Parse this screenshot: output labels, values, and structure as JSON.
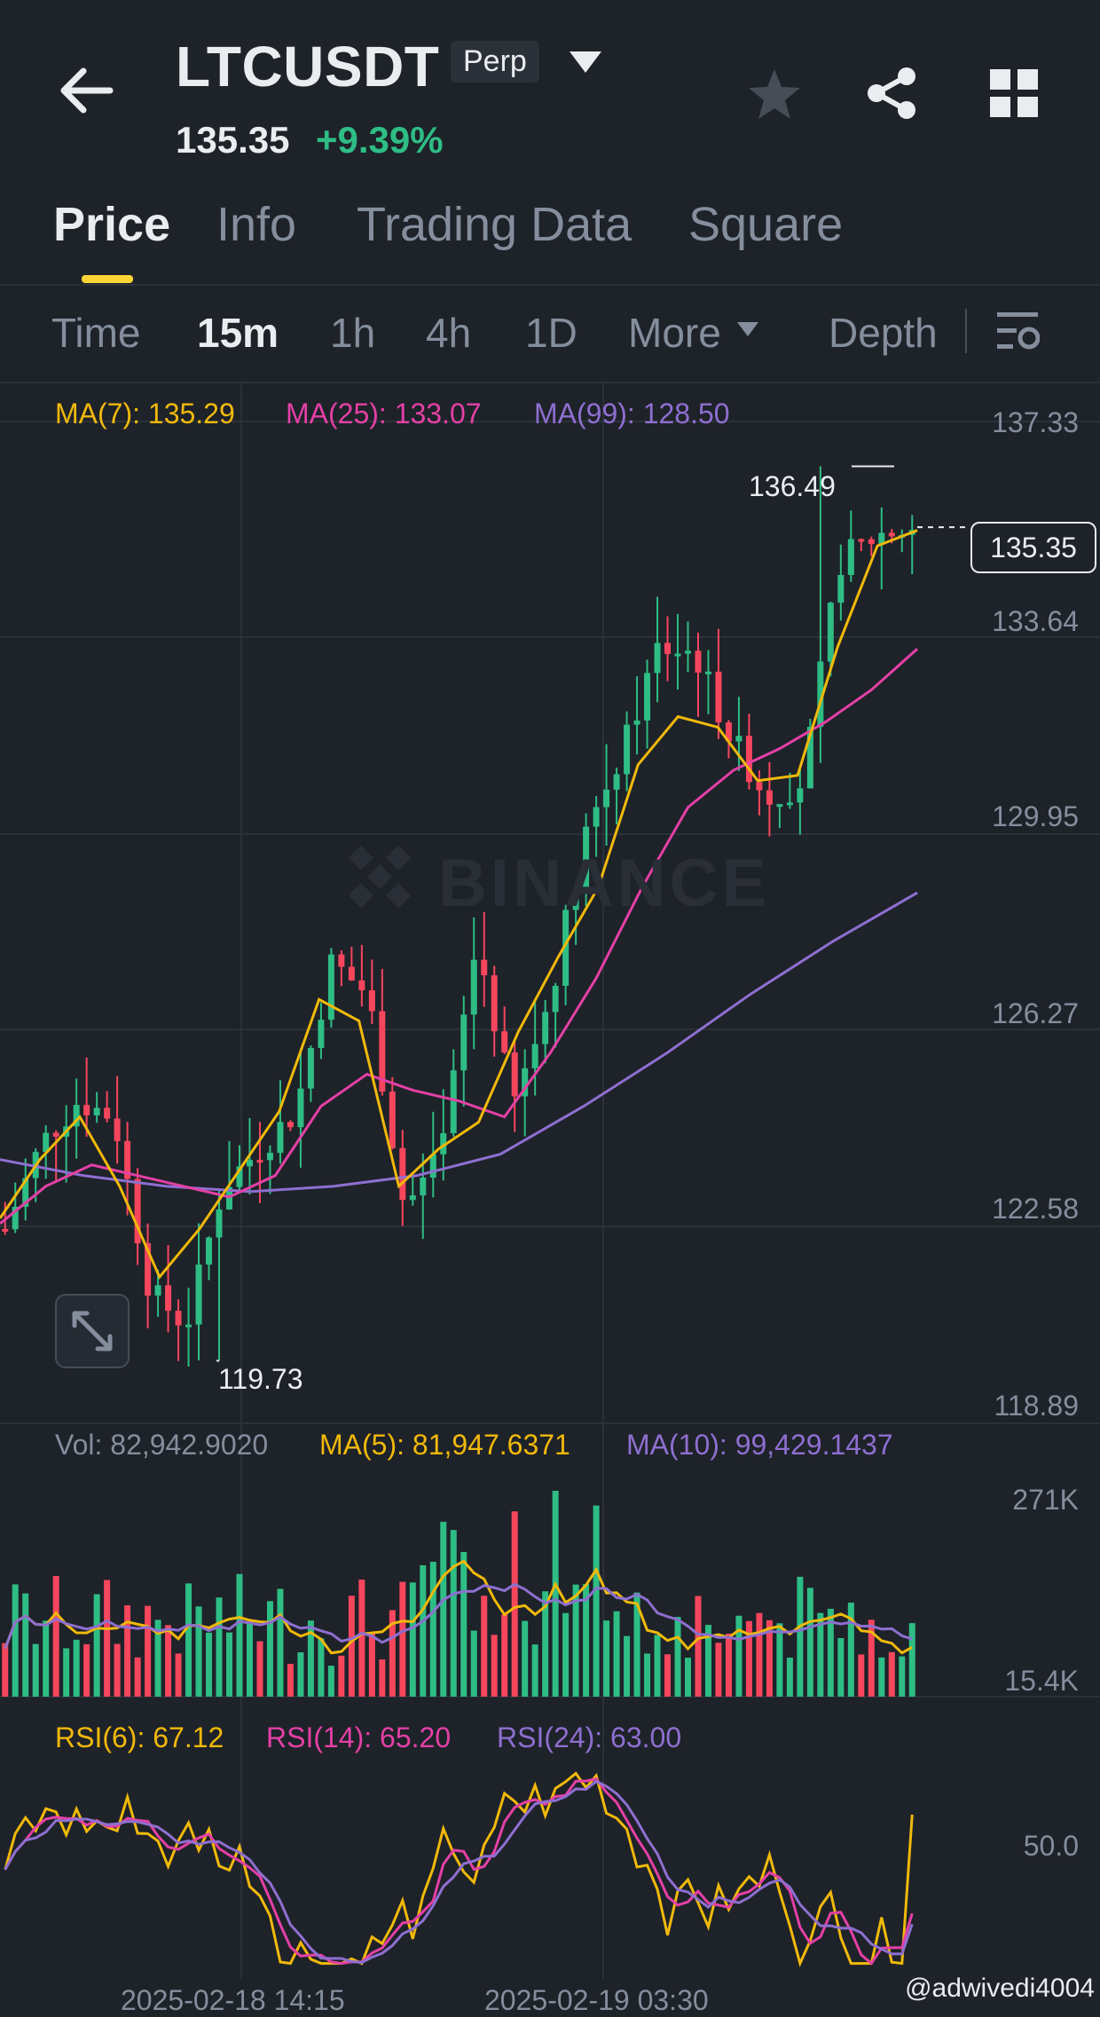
{
  "header": {
    "symbol": "LTCUSDT",
    "badge": "Perp",
    "last_price": "135.35",
    "change_pct": "+9.39%"
  },
  "icons": {
    "back": "arrow-left-icon",
    "dropdown": "caret-down-icon",
    "favorite": "star-icon",
    "share": "share-icon",
    "layout": "grid-icon",
    "settings": "chart-settings-icon",
    "expand": "expand-icon"
  },
  "tabs": [
    "Price",
    "Info",
    "Trading Data",
    "Square"
  ],
  "timeframes": {
    "items": [
      "Time",
      "15m",
      "1h",
      "4h",
      "1D",
      "More"
    ],
    "depth": "Depth",
    "active": "15m"
  },
  "main_chart": {
    "ma7": "MA(7): 135.29",
    "ma25": "MA(25): 133.07",
    "ma99": "MA(99): 128.50",
    "y_axis": [
      "137.33",
      "133.64",
      "129.95",
      "126.27",
      "122.58",
      "118.89"
    ],
    "current_price": "135.35",
    "high_label": "136.49",
    "low_label": "119.73",
    "watermark": "BINANCE"
  },
  "volume": {
    "vol": "Vol: 82,942.9020",
    "ma5": "MA(5): 81,947.6371",
    "ma10": "MA(10): 99,429.1437",
    "y_axis": [
      "271K",
      "15.4K"
    ]
  },
  "rsi": {
    "rsi6": "RSI(6): 67.12",
    "rsi14": "RSI(14): 65.20",
    "rsi24": "RSI(24): 63.00",
    "y_axis": [
      "50.0"
    ]
  },
  "x_axis": [
    "2025-02-18 14:15",
    "2025-02-19 03:30"
  ],
  "watermark_user": "@adwivedi4004",
  "colors": {
    "bg": "#1e2229",
    "up": "#2ebd85",
    "down": "#f6465d",
    "ma7": "#f0b90b",
    "ma25": "#e440a6",
    "ma99": "#8e6fd0",
    "accent": "#fcd535"
  },
  "chart_data": {
    "type": "candlestick",
    "title": "LTCUSDT",
    "interval": "15m",
    "ylim": [
      118.89,
      137.33
    ],
    "close_path": [
      122.2,
      123.8,
      124.6,
      124.3,
      121.0,
      120.4,
      123.0,
      123.7,
      124.4,
      127.2,
      126.6,
      122.6,
      123.5,
      127.6,
      124.5,
      126.5,
      129.7,
      131.1,
      133.1,
      133.0,
      131.4,
      130.3,
      130.6,
      134.7,
      135.2,
      135.35
    ],
    "ma7_path": [
      122.4,
      123.5,
      124.3,
      123.0,
      121.3,
      122.2,
      123.3,
      124.4,
      126.5,
      126.1,
      123.0,
      123.7,
      124.2,
      125.9,
      127.3,
      128.6,
      130.9,
      131.8,
      131.6,
      130.6,
      130.7,
      133.1,
      135.0,
      135.29
    ],
    "ma25_path": [
      122.3,
      123.0,
      123.4,
      123.2,
      123.0,
      122.8,
      123.2,
      124.5,
      125.1,
      124.8,
      124.6,
      124.3,
      125.5,
      126.9,
      128.6,
      130.1,
      130.8,
      131.2,
      131.7,
      132.3,
      133.07
    ],
    "ma99_path": [
      123.5,
      123.2,
      123.0,
      122.9,
      123.0,
      123.2,
      123.6,
      124.5,
      125.5,
      126.6,
      127.6,
      128.5
    ],
    "high": 136.49,
    "low": 119.73
  }
}
